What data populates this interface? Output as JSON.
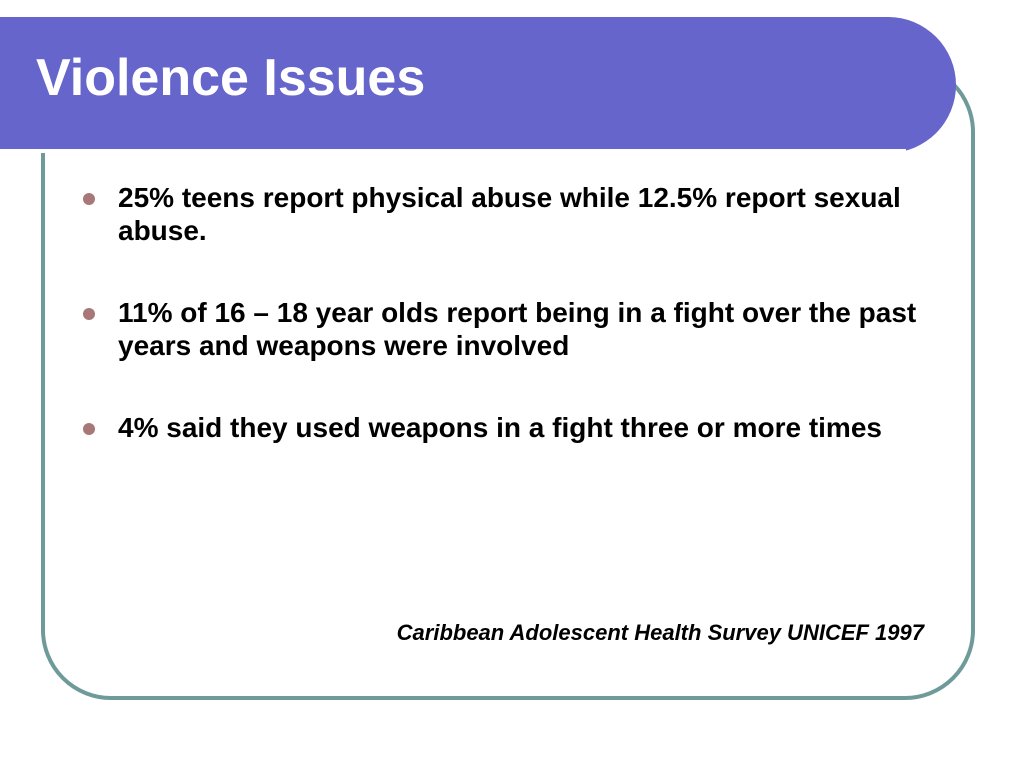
{
  "slide": {
    "title": "Violence Issues",
    "bullets": [
      "25% teens report physical abuse while 12.5% report sexual abuse.",
      "11% of 16 – 18 year olds report being in a fight over the past years and weapons were involved",
      "4% said they used weapons in a fight three or more times"
    ],
    "source": "Caribbean Adolescent Health Survey UNICEF 1997"
  },
  "theme": {
    "title_bar_color": "#6565cc",
    "frame_border_color": "#6f9a9a",
    "bullet_color": "#a87777",
    "text_color": "#000000"
  }
}
